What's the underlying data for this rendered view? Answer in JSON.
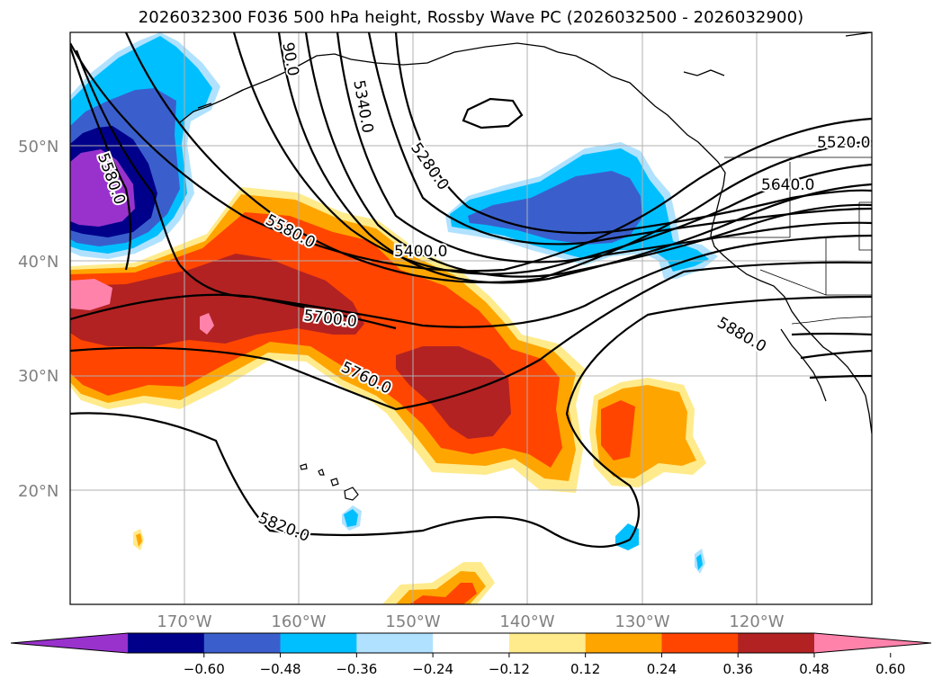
{
  "map": {
    "title": "2026032300 F036 500 hPa height, Rossby Wave PC (2026032500 - 2026032900)",
    "lat_labels": [
      "50°N",
      "40°N",
      "30°N",
      "20°N"
    ],
    "lon_labels": [
      "170°W",
      "160°W",
      "150°W",
      "140°W",
      "130°W",
      "120°W"
    ],
    "contour_labels": [
      "90.0",
      "5340.0",
      "5580.0",
      "5280.0",
      "5520.0",
      "5640.0",
      "5580.0",
      "5400.0",
      "5700.0",
      "5880.0",
      "5760.0",
      "5820.0"
    ],
    "colorbar": {
      "ticks": [
        "−0.60",
        "−0.48",
        "−0.36",
        "−0.24",
        "−0.12",
        "0.12",
        "0.24",
        "0.36",
        "0.48",
        "0.60"
      ],
      "colors": [
        "#9932cc",
        "#00008b",
        "#3a5fcd",
        "#00bfff",
        "#b0e2ff",
        "#ffffff",
        "#ffeb8c",
        "#ffa500",
        "#ff4500",
        "#b22222",
        "#ff82ab"
      ]
    }
  }
}
